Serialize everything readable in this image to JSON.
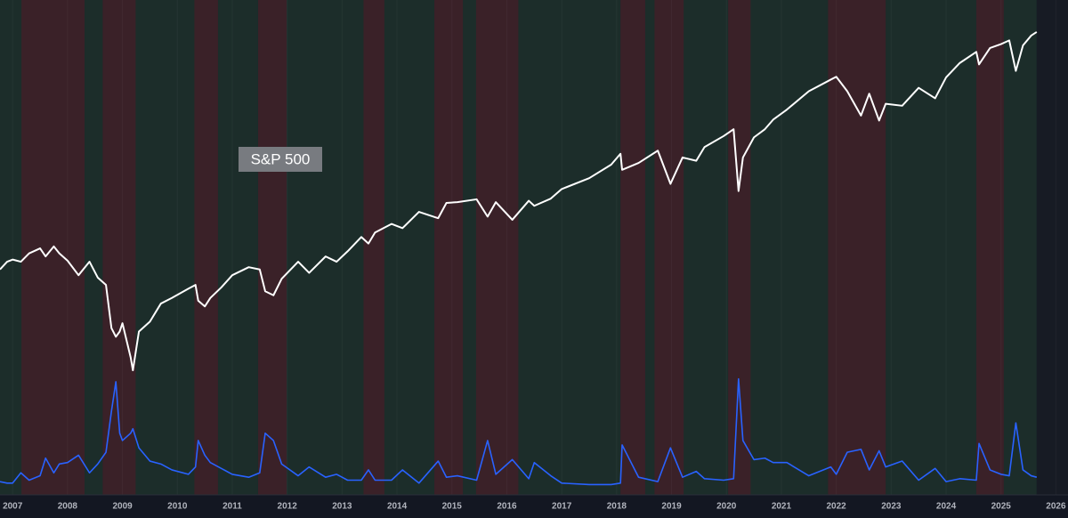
{
  "chart_data": {
    "type": "line",
    "log_scale_y": true,
    "grid": true,
    "xlim": [
      2006.77,
      2026.22
    ],
    "xticks": [
      2007,
      2008,
      2009,
      2010,
      2011,
      2012,
      2013,
      2014,
      2015,
      2016,
      2017,
      2018,
      2019,
      2020,
      2021,
      2022,
      2023,
      2024,
      2025,
      2026
    ],
    "ylim": [
      297,
      7980
    ],
    "y2lim": [
      3,
      340
    ],
    "region_color": "#3a2128",
    "regions": [
      [
        2007.16,
        2008.31
      ],
      [
        2008.64,
        2009.24
      ],
      [
        2010.31,
        2010.74
      ],
      [
        2011.47,
        2011.99
      ],
      [
        2013.39,
        2013.77
      ],
      [
        2014.68,
        2015.2
      ],
      [
        2015.44,
        2016.21
      ],
      [
        2018.07,
        2018.52
      ],
      [
        2018.69,
        2019.22
      ],
      [
        2020.03,
        2020.44
      ],
      [
        2021.85,
        2022.9
      ],
      [
        2024.55,
        2025.05
      ]
    ],
    "background_color": "#1c2d2a",
    "x": [
      2006.77,
      2006.9,
      2007.0,
      2007.15,
      2007.3,
      2007.5,
      2007.6,
      2007.75,
      2007.85,
      2008.0,
      2008.2,
      2008.4,
      2008.55,
      2008.7,
      2008.8,
      2008.88,
      2008.95,
      2009.0,
      2009.15,
      2009.19,
      2009.3,
      2009.5,
      2009.7,
      2009.9,
      2010.2,
      2010.33,
      2010.38,
      2010.5,
      2010.6,
      2010.8,
      2011.0,
      2011.3,
      2011.5,
      2011.6,
      2011.75,
      2011.9,
      2012.2,
      2012.4,
      2012.7,
      2012.9,
      2013.1,
      2013.35,
      2013.48,
      2013.6,
      2013.9,
      2014.1,
      2014.4,
      2014.75,
      2014.9,
      2015.1,
      2015.45,
      2015.65,
      2015.8,
      2016.1,
      2016.4,
      2016.5,
      2016.8,
      2017.0,
      2017.5,
      2017.9,
      2018.07,
      2018.1,
      2018.4,
      2018.75,
      2018.98,
      2019.2,
      2019.45,
      2019.6,
      2019.95,
      2020.13,
      2020.22,
      2020.3,
      2020.5,
      2020.7,
      2020.85,
      2021.1,
      2021.5,
      2021.9,
      2022.0,
      2022.2,
      2022.45,
      2022.6,
      2022.78,
      2022.9,
      2023.2,
      2023.5,
      2023.8,
      2024.0,
      2024.25,
      2024.55,
      2024.6,
      2024.8,
      2025.0,
      2025.15,
      2025.27,
      2025.4,
      2025.55,
      2025.65
    ],
    "series": [
      {
        "name": "S&P 500",
        "color": "#ffffff",
        "values": [
          1330,
          1400,
          1420,
          1400,
          1480,
          1530,
          1450,
          1550,
          1480,
          1410,
          1280,
          1400,
          1260,
          1200,
          900,
          850,
          880,
          930,
          740,
          680,
          880,
          940,
          1060,
          1100,
          1170,
          1200,
          1080,
          1040,
          1100,
          1180,
          1280,
          1350,
          1330,
          1150,
          1120,
          1250,
          1400,
          1300,
          1450,
          1400,
          1500,
          1650,
          1580,
          1700,
          1800,
          1750,
          1950,
          1870,
          2070,
          2080,
          2120,
          1890,
          2080,
          1850,
          2100,
          2030,
          2130,
          2270,
          2440,
          2670,
          2870,
          2580,
          2700,
          2930,
          2350,
          2800,
          2740,
          3000,
          3230,
          3380,
          2240,
          2800,
          3200,
          3380,
          3600,
          3850,
          4350,
          4700,
          4790,
          4350,
          3700,
          4280,
          3580,
          4000,
          3950,
          4450,
          4150,
          4770,
          5250,
          5650,
          5200,
          5800,
          5950,
          6100,
          4980,
          5900,
          6300,
          6450
        ]
      },
      {
        "color": "#2962ff",
        "axis": "y2",
        "values": [
          12,
          11,
          11,
          18,
          13,
          16,
          28,
          18,
          24,
          25,
          30,
          18,
          24,
          32,
          60,
          80,
          45,
          40,
          45,
          48,
          35,
          26,
          24,
          20,
          17,
          22,
          40,
          30,
          25,
          21,
          17,
          15,
          18,
          45,
          40,
          24,
          16,
          22,
          15,
          17,
          13,
          13,
          20,
          13,
          13,
          20,
          11,
          26,
          15,
          16,
          13,
          40,
          17,
          27,
          14,
          25,
          16,
          11,
          10,
          10,
          11,
          37,
          15,
          12,
          35,
          15,
          19,
          14,
          13,
          14,
          82,
          40,
          27,
          28,
          25,
          25,
          16,
          22,
          17,
          32,
          34,
          20,
          33,
          22,
          26,
          13,
          21,
          12,
          14,
          13,
          38,
          20,
          17,
          16,
          52,
          20,
          16,
          15
        ]
      }
    ]
  }
}
